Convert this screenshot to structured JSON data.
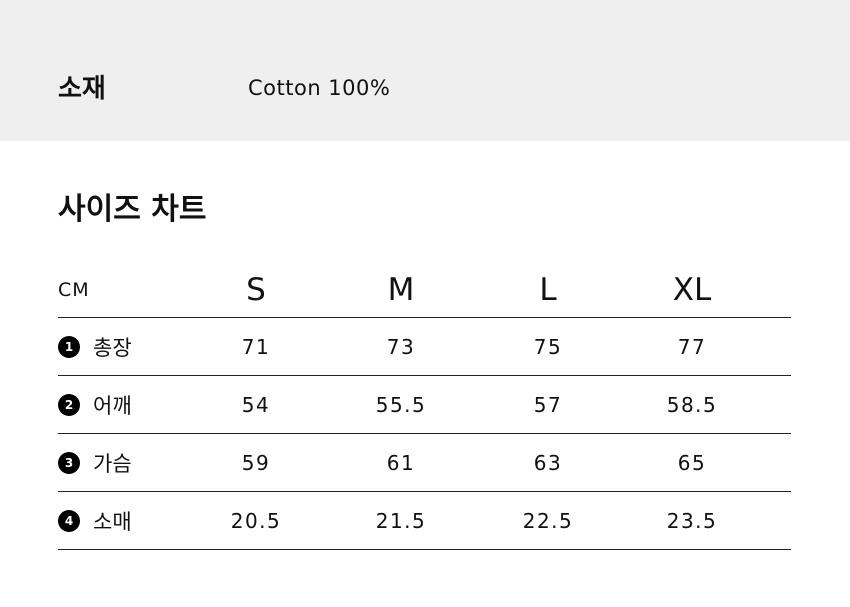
{
  "material": {
    "label": "소재",
    "value": "Cotton 100%"
  },
  "size_chart": {
    "title": "사이즈 차트",
    "unit": "CM",
    "sizes": [
      "S",
      "M",
      "L",
      "XL"
    ],
    "rows": [
      {
        "num": "1",
        "label": "총장",
        "values": [
          "71",
          "73",
          "75",
          "77"
        ]
      },
      {
        "num": "2",
        "label": "어깨",
        "values": [
          "54",
          "55.5",
          "57",
          "58.5"
        ]
      },
      {
        "num": "3",
        "label": "가슴",
        "values": [
          "59",
          "61",
          "63",
          "65"
        ]
      },
      {
        "num": "4",
        "label": "소매",
        "values": [
          "20.5",
          "21.5",
          "22.5",
          "23.5"
        ]
      }
    ]
  }
}
